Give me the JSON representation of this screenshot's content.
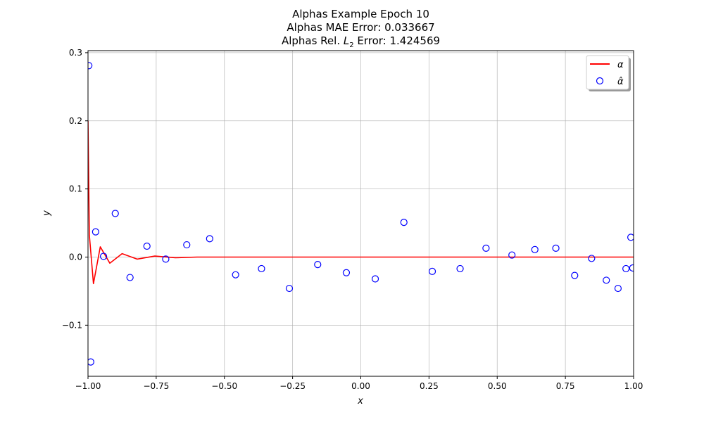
{
  "chart_data": {
    "type": "line",
    "title_lines": [
      "Alphas Example Epoch 10",
      "Alphas MAE Error: 0.033667"
    ],
    "title_line3_prefix": "Alphas Rel. ",
    "title_line3_sym": "L",
    "title_line3_sub": "2",
    "title_line3_suffix": " Error: 1.424569",
    "xlabel": "x",
    "ylabel": "y",
    "xlim": [
      -1.0,
      1.0
    ],
    "ylim": [
      -0.175,
      0.303
    ],
    "x_ticks": [
      -1.0,
      -0.75,
      -0.5,
      -0.25,
      0.0,
      0.25,
      0.5,
      0.75,
      1.0
    ],
    "x_tick_labels": [
      "−1.00",
      "−0.75",
      "−0.50",
      "−0.25",
      "0.00",
      "0.25",
      "0.50",
      "0.75",
      "1.00"
    ],
    "y_ticks": [
      -0.1,
      0.0,
      0.1,
      0.2,
      0.3
    ],
    "y_tick_labels": [
      "−0.1",
      "0.0",
      "0.1",
      "0.2",
      "0.3"
    ],
    "grid": true,
    "legend_position": "top-right",
    "series": [
      {
        "name": "α",
        "kind": "line",
        "color": "#ff0000",
        "x": [
          -1.0,
          -0.995,
          -0.98,
          -0.955,
          -0.92,
          -0.875,
          -0.82,
          -0.755,
          -0.68,
          -0.6,
          -0.5,
          -0.4,
          -0.3,
          -0.2,
          -0.1,
          0.0,
          0.1,
          0.2,
          0.3,
          0.4,
          0.5,
          0.6,
          0.7,
          0.8,
          0.9,
          0.95,
          1.0
        ],
        "y": [
          0.2,
          0.032,
          -0.039,
          0.015,
          -0.009,
          0.005,
          -0.003,
          0.0015,
          -0.001,
          0.0,
          0.0,
          0.0,
          0.0,
          0.0,
          0.0,
          0.0,
          0.0,
          0.0,
          0.0,
          0.0,
          0.0,
          0.0,
          0.0,
          0.0,
          0.0,
          0.0,
          0.0
        ]
      },
      {
        "name": "α̂",
        "kind": "scatter",
        "color": "#0000ff",
        "x": [
          -0.997,
          -0.99,
          -0.972,
          -0.943,
          -0.9,
          -0.846,
          -0.784,
          -0.715,
          -0.638,
          -0.554,
          -0.459,
          -0.364,
          -0.262,
          -0.158,
          -0.053,
          0.053,
          0.158,
          0.262,
          0.364,
          0.459,
          0.554,
          0.638,
          0.715,
          0.784,
          0.846,
          0.9,
          0.943,
          0.972,
          0.99,
          0.997
        ],
        "y": [
          0.281,
          -0.154,
          0.037,
          0.001,
          0.064,
          -0.03,
          0.016,
          -0.003,
          0.018,
          0.027,
          -0.026,
          -0.017,
          -0.046,
          -0.011,
          -0.023,
          -0.032,
          0.051,
          -0.021,
          -0.017,
          0.013,
          0.003,
          0.011,
          0.013,
          -0.027,
          -0.002,
          -0.034,
          -0.046,
          -0.017,
          0.029,
          -0.016
        ]
      }
    ]
  }
}
